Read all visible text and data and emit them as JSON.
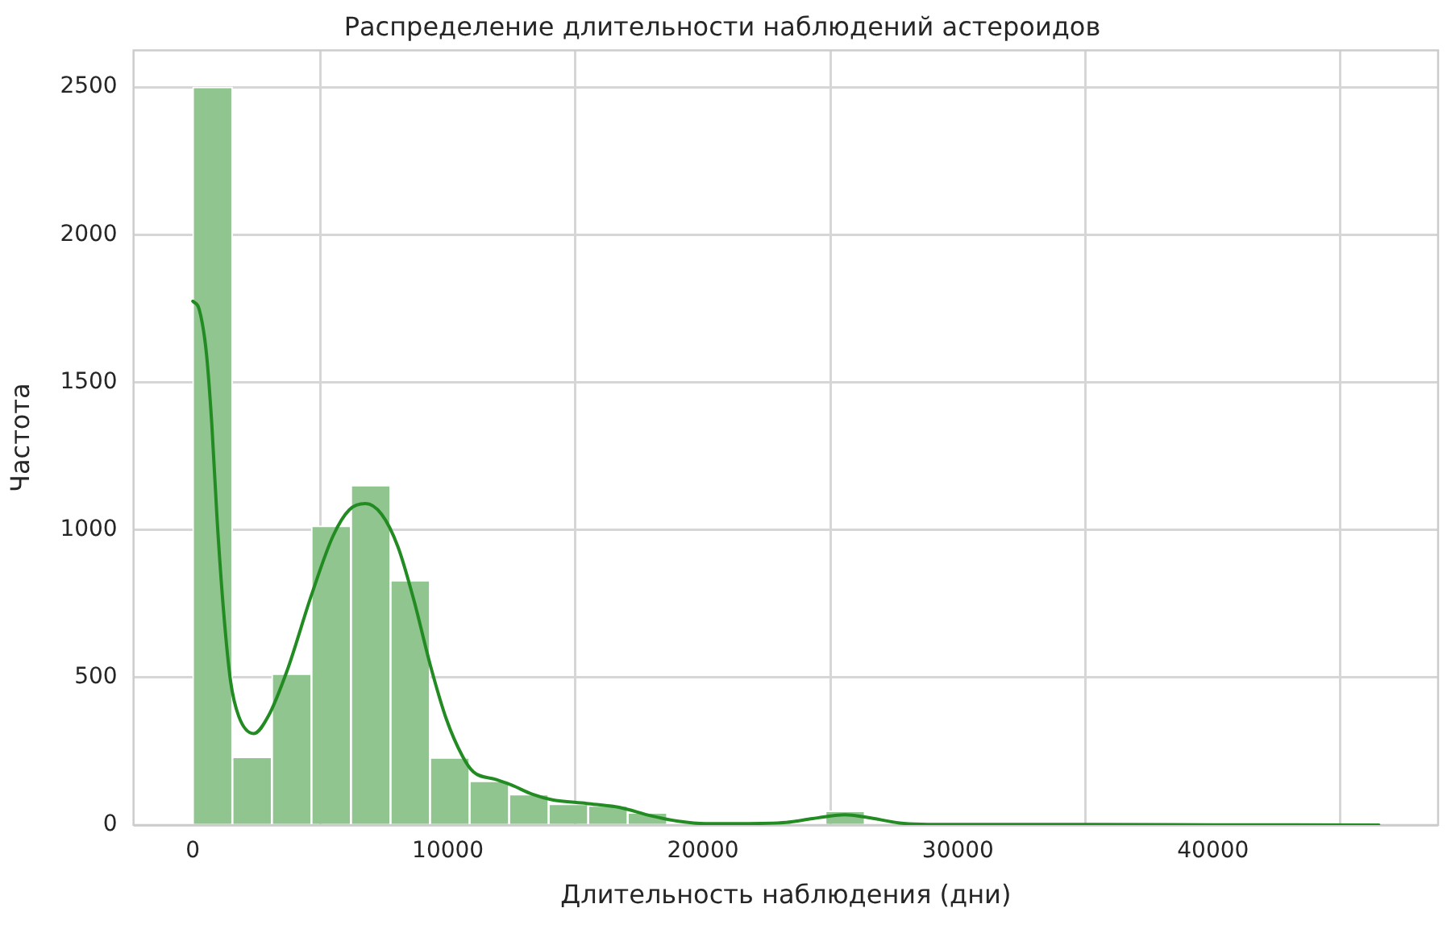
{
  "chart_data": {
    "type": "histogram",
    "title": "Распределение длительности наблюдений астероидов",
    "xlabel": "Длительность наблюдения (дни)",
    "ylabel": "Частота",
    "bins": [
      0,
      1550,
      3100,
      4650,
      6200,
      7750,
      9300,
      10850,
      12400,
      13950,
      15500,
      17050,
      18600,
      20150,
      21700,
      23250,
      24800,
      26350,
      27900,
      29450,
      31000,
      32550,
      34100,
      35650,
      37200,
      38750,
      40300,
      41850,
      43400,
      44950,
      46500
    ],
    "series": [
      {
        "type": "histogram",
        "color": "#90c590",
        "values": [
          2500,
          230,
          512,
          1013,
          1151,
          829,
          228,
          149,
          104,
          71,
          66,
          42,
          0,
          0,
          0,
          0,
          47,
          0,
          0,
          0,
          0,
          0,
          0,
          0,
          0,
          0,
          0,
          0,
          0,
          0
        ]
      },
      {
        "type": "line",
        "color": "#228b22",
        "x": [
          0,
          254,
          530,
          740,
          952,
          1206,
          1480,
          1798,
          2390,
          2960,
          3700,
          4650,
          5500,
          6135,
          6770,
          7400,
          8040,
          8670,
          9310,
          9940,
          10580,
          11000,
          11850,
          12480,
          13325,
          14065,
          15440,
          16710,
          17980,
          19040,
          20100,
          21500,
          23270,
          24300,
          25570,
          26440,
          27710,
          28550,
          30000,
          35000,
          40000,
          46500
        ],
        "values": [
          1775,
          1746,
          1600,
          1363,
          1035,
          724,
          487,
          369,
          310,
          369,
          524,
          779,
          980,
          1068,
          1089,
          1053,
          943,
          761,
          542,
          359,
          232,
          180,
          155,
          136,
          104,
          86,
          73,
          60,
          31,
          13,
          5,
          5,
          9,
          22,
          35,
          26,
          7,
          3,
          2,
          2,
          1,
          0
        ]
      }
    ],
    "xlim": [
      -2325,
      48825
    ],
    "xticks": [
      0,
      10000,
      20000,
      30000,
      40000
    ],
    "ylim": [
      0,
      2625
    ],
    "yticks": [
      0,
      500,
      1000,
      1500,
      2000,
      2500
    ],
    "grid": true
  }
}
